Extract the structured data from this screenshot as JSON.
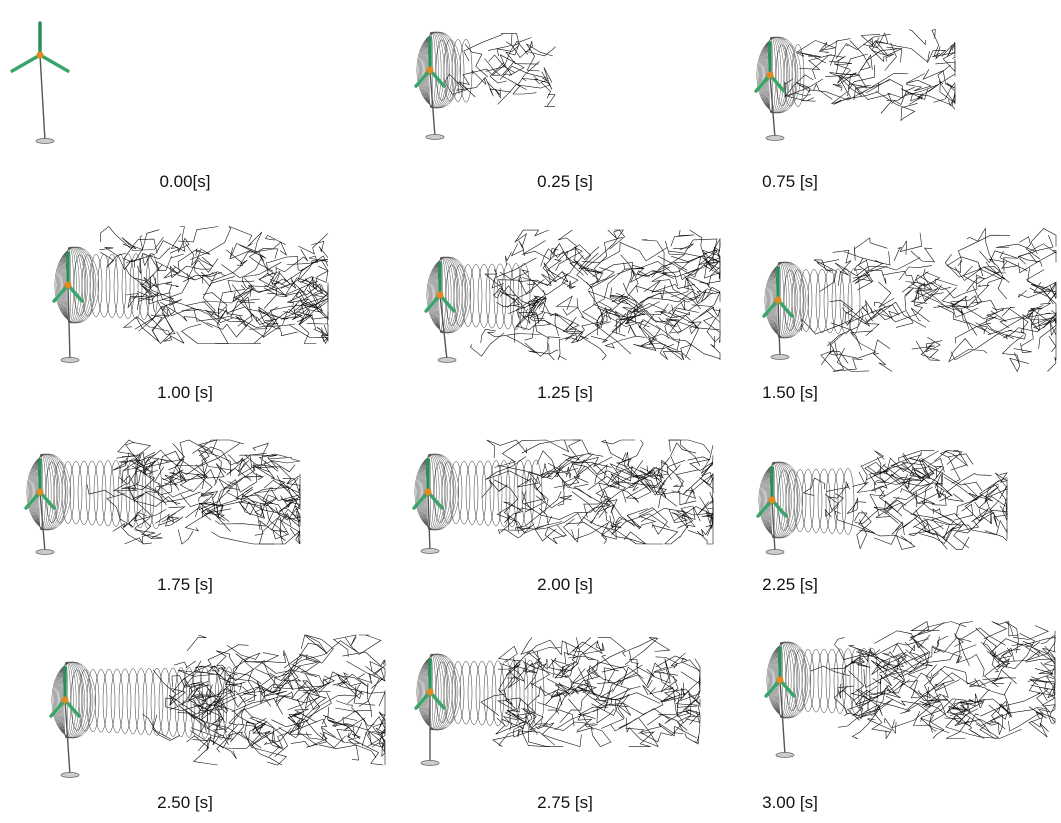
{
  "panels": [
    {
      "label": "0.00[s]"
    },
    {
      "label": "0.25 [s]"
    },
    {
      "label": "0.75 [s]"
    },
    {
      "label": "1.00 [s]"
    },
    {
      "label": "1.25 [s]"
    },
    {
      "label": "1.50 [s]"
    },
    {
      "label": "1.75 [s]"
    },
    {
      "label": "2.00 [s]"
    },
    {
      "label": "2.25 [s]"
    },
    {
      "label": "2.50 [s]"
    },
    {
      "label": "2.75 [s]"
    },
    {
      "label": "3.00 [s]"
    }
  ]
}
